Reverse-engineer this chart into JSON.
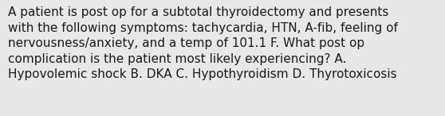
{
  "text": "A patient is post op for a subtotal thyroidectomy and presents\nwith the following symptoms: tachycardia, HTN, A-fib, feeling of\nnervousness/anxiety, and a temp of 101.1 F. What post op\ncomplication is the patient most likely experiencing? A.\nHypovolemic shock B. DKA C. Hypothyroidism D. Thyrotoxicosis",
  "background_color": "#e8e8e8",
  "text_color": "#1a1a1a",
  "font_size": 11.0,
  "fig_width": 5.58,
  "fig_height": 1.46
}
